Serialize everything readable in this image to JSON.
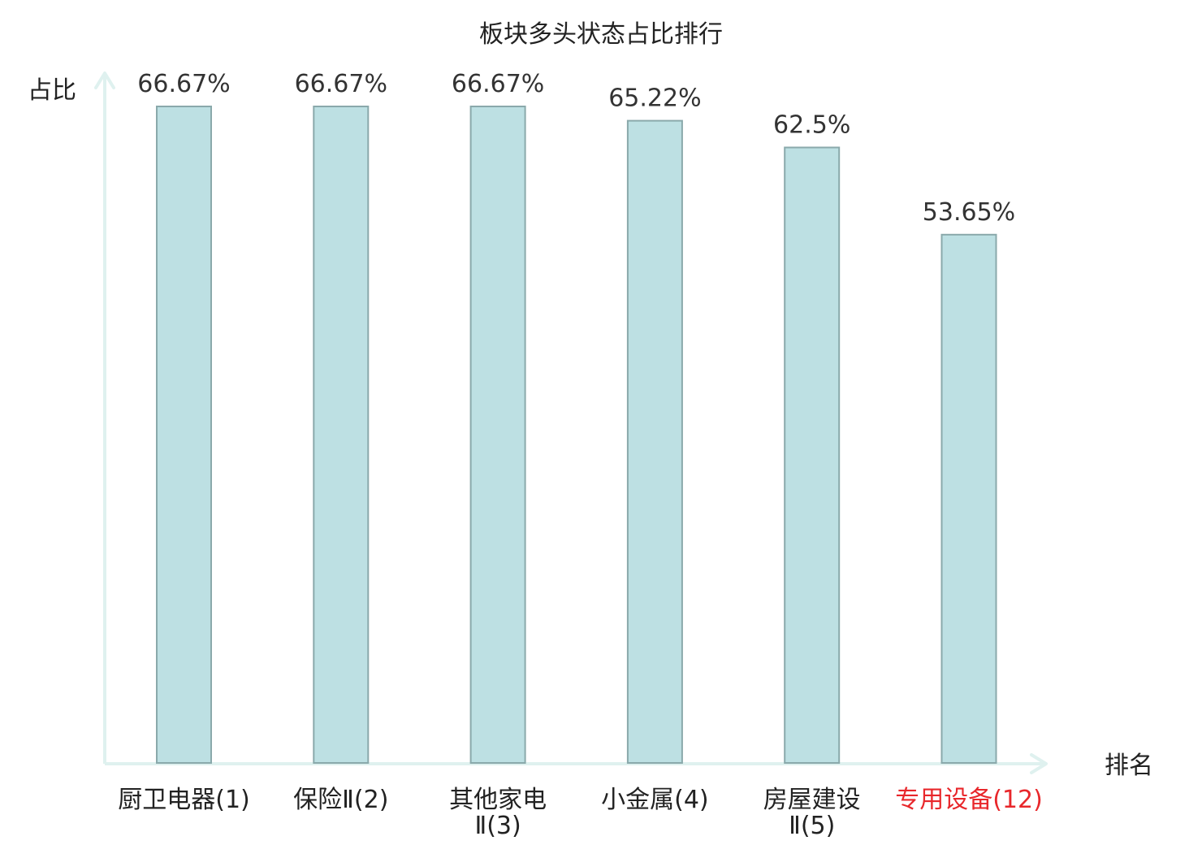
{
  "chart_data": {
    "type": "bar",
    "title": "板块多头状态占比排行",
    "ylabel": "占比",
    "xlabel": "排名",
    "categories": [
      [
        "厨卫电器(1)"
      ],
      [
        "保险Ⅱ(2)"
      ],
      [
        "其他家电",
        "Ⅱ(3)"
      ],
      [
        "小金属(4)"
      ],
      [
        "房屋建设",
        "Ⅱ(5)"
      ],
      [
        "专用设备(12)"
      ]
    ],
    "values": [
      66.67,
      66.67,
      66.67,
      65.22,
      62.5,
      53.65
    ],
    "value_labels": [
      "66.67%",
      "66.67%",
      "66.67%",
      "65.22%",
      "62.5%",
      "53.65%"
    ],
    "highlight_index": 5,
    "ylim": [
      0,
      66.67
    ],
    "grid": false,
    "legend": "none",
    "colors": {
      "bar_fill": "#bde0e3",
      "bar_stroke": "#8aa9ab",
      "axis": "#dff1ef",
      "text": "#222222",
      "value_text": "#333333",
      "highlight_text": "#e8272b"
    }
  }
}
